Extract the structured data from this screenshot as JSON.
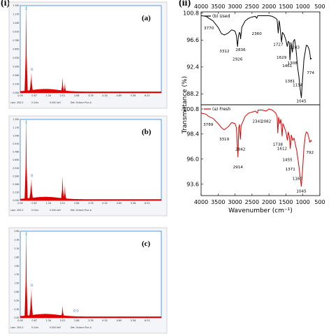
{
  "labels": {
    "left": "(i)",
    "right": "(ii)"
  },
  "colors": {
    "fresh": "#e00000",
    "used": "#000000",
    "eds_fill": "#dd0000",
    "eds_bg": "#f4f5f8",
    "eds_border": "#1a6fd0"
  },
  "chart_data": [
    {
      "type": "area",
      "panel": "(a)",
      "xlim": [
        0,
        6.7
      ],
      "x_ticks": [
        "0.00",
        "0.67",
        "1.34",
        "2.01",
        "2.68",
        "3.35",
        "4.02",
        "4.69",
        "5.36",
        "6.03"
      ],
      "y_ticks": [
        "1.30K",
        "1.17K",
        "1.04K",
        "0.91K",
        "0.78K",
        "0.65K",
        "0.52K",
        "0.39K",
        "0.26K",
        "0.13K",
        "0.00K"
      ],
      "ylim": [
        0,
        1300
      ],
      "footer": [
        "Lsec: 200.0",
        "0 Cnts",
        "0.000 keV",
        "Det: Octane Plus A"
      ],
      "peaks": [
        {
          "label": "C",
          "energy": 0.28,
          "height": 1240
        },
        {
          "label": "O",
          "energy": 0.53,
          "height": 310
        },
        {
          "label": "",
          "energy": 0.5,
          "height": 210
        },
        {
          "label": "",
          "energy": 2.01,
          "height": 230
        },
        {
          "label": "",
          "energy": 2.12,
          "height": 150
        }
      ]
    },
    {
      "type": "area",
      "panel": "(b)",
      "xlim": [
        0,
        6.7
      ],
      "x_ticks": [
        "0.00",
        "0.67",
        "1.34",
        "2.01",
        "2.68",
        "3.35",
        "4.02",
        "4.69",
        "5.36",
        "6.03"
      ],
      "y_ticks": [
        "1.30K",
        "1.17K",
        "1.04K",
        "0.91K",
        "0.78K",
        "0.65K",
        "0.52K",
        "0.39K",
        "0.26K",
        "0.13K",
        "0.00K"
      ],
      "ylim": [
        0,
        1300
      ],
      "footer": [
        "Lsec: 200.0",
        "0 Cnts",
        "0.000 keV",
        "Det: Octane Plus A"
      ],
      "peaks": [
        {
          "label": "C",
          "energy": 0.28,
          "height": 1250
        },
        {
          "label": "O",
          "energy": 0.53,
          "height": 360
        },
        {
          "label": "",
          "energy": 0.5,
          "height": 260
        },
        {
          "label": "",
          "energy": 2.01,
          "height": 390
        },
        {
          "label": "",
          "energy": 2.12,
          "height": 240
        }
      ]
    },
    {
      "type": "area",
      "panel": "(c)",
      "xlim": [
        0,
        6.7
      ],
      "x_ticks": [
        "0.00",
        "0.67",
        "1.34",
        "2.01",
        "2.68",
        "3.35",
        "4.02",
        "4.69",
        "5.36",
        "6.03"
      ],
      "y_ticks": [
        "2.6K",
        "2.3K",
        "2.1K",
        "1.8K",
        "1.6K",
        "1.3K",
        "1.0K",
        "0.8K",
        "0.5K",
        "0.3K",
        "0.0K"
      ],
      "ylim": [
        0,
        2600
      ],
      "footer": [
        "Lsec: 200.0",
        "0 Cnts",
        "0.000 keV",
        "Det: Octane Plus A"
      ],
      "peaks": [
        {
          "label": "C",
          "energy": 0.28,
          "height": 2450
        },
        {
          "label": "O",
          "energy": 0.53,
          "height": 900
        },
        {
          "label": "",
          "energy": 0.5,
          "height": 650
        },
        {
          "label": "",
          "energy": 2.01,
          "height": 360
        },
        {
          "label": "O",
          "energy": 2.55,
          "height": 0
        },
        {
          "label": "O",
          "energy": 2.7,
          "height": 0
        }
      ]
    },
    {
      "type": "line",
      "xlabel": "Wavenumber (cm⁻¹)",
      "ylabel": "Transmittance (%)",
      "x_ticks": [
        4000,
        3500,
        3000,
        2500,
        2000,
        1500,
        1000,
        500
      ],
      "xlim": [
        4000,
        500
      ],
      "reversed_x": true,
      "panels": [
        {
          "legend": "(b) Used",
          "color": "#000000",
          "ylim": [
            86.5,
            101
          ],
          "y_ticks": [
            100.8,
            96.6,
            92.4,
            88.2
          ],
          "points": [
            [
              3990,
              100.4
            ],
            [
              3850,
              100.3
            ],
            [
              3770,
              100.0
            ],
            [
              3650,
              99.6
            ],
            [
              3500,
              98.6
            ],
            [
              3400,
              97.6
            ],
            [
              3312,
              97.4
            ],
            [
              3200,
              97.7
            ],
            [
              3100,
              98.2
            ],
            [
              3000,
              98.0
            ],
            [
              2960,
              97.3
            ],
            [
              2926,
              95.6
            ],
            [
              2900,
              97.2
            ],
            [
              2870,
              97.8
            ],
            [
              2850,
              97.6
            ],
            [
              2836,
              96.8
            ],
            [
              2800,
              98.6
            ],
            [
              2700,
              99.6
            ],
            [
              2600,
              100.0
            ],
            [
              2500,
              100.2
            ],
            [
              2400,
              100.3
            ],
            [
              2360,
              100.0
            ],
            [
              2330,
              100.4
            ],
            [
              2200,
              100.4
            ],
            [
              2100,
              100.4
            ],
            [
              2000,
              100.4
            ],
            [
              1900,
              100.3
            ],
            [
              1800,
              100.0
            ],
            [
              1760,
              99.8
            ],
            [
              1727,
              97.7
            ],
            [
              1700,
              99.6
            ],
            [
              1680,
              99.0
            ],
            [
              1629,
              96.3
            ],
            [
              1600,
              97.8
            ],
            [
              1550,
              97.4
            ],
            [
              1500,
              96.6
            ],
            [
              1461,
              95.6
            ],
            [
              1430,
              96.4
            ],
            [
              1400,
              96.2
            ],
            [
              1381,
              93.5
            ],
            [
              1350,
              96.2
            ],
            [
              1308,
              94.7
            ],
            [
              1280,
              96.4
            ],
            [
              1243,
              96.7
            ],
            [
              1200,
              95.0
            ],
            [
              1154,
              92.3
            ],
            [
              1120,
              91.0
            ],
            [
              1080,
              89.0
            ],
            [
              1045,
              87.6
            ],
            [
              1010,
              90.5
            ],
            [
              970,
              93.5
            ],
            [
              930,
              94.8
            ],
            [
              900,
              95.8
            ],
            [
              860,
              95.7
            ],
            [
              820,
              95.2
            ],
            [
              800,
              94.8
            ],
            [
              774,
              93.6
            ],
            [
              740,
              93.8
            ]
          ],
          "annotations": [
            {
              "text": "3770",
              "x": 3770,
              "y": 98.3
            },
            {
              "text": "3312",
              "x": 3312,
              "y": 94.7
            },
            {
              "text": "2926",
              "x": 2926,
              "y": 93.4
            },
            {
              "text": "2836",
              "x": 2836,
              "y": 94.9
            },
            {
              "text": "2360",
              "x": 2360,
              "y": 97.4
            },
            {
              "text": "1727",
              "x": 1727,
              "y": 95.7
            },
            {
              "text": "1629",
              "x": 1629,
              "y": 93.7
            },
            {
              "text": "1461",
              "x": 1461,
              "y": 92.4
            },
            {
              "text": "1381",
              "x": 1381,
              "y": 90.0
            },
            {
              "text": "1308",
              "x": 1308,
              "y": 92.8
            },
            {
              "text": "1243",
              "x": 1243,
              "y": 95.3
            },
            {
              "text": "1154",
              "x": 1154,
              "y": 89.4
            },
            {
              "text": "1045",
              "x": 1045,
              "y": 86.9
            },
            {
              "text": "774",
              "x": 774,
              "y": 91.3
            }
          ]
        },
        {
          "legend": "(a) Fresh",
          "color": "#e00000",
          "ylim": [
            92.5,
            101.2
          ],
          "y_ticks": [
            100.8,
            98.4,
            96.0,
            93.6
          ],
          "points": [
            [
              3990,
              100.4
            ],
            [
              3850,
              100.3
            ],
            [
              3789,
              100.1
            ],
            [
              3650,
              99.9
            ],
            [
              3500,
              99.4
            ],
            [
              3400,
              99.0
            ],
            [
              3319,
              98.8
            ],
            [
              3200,
              99.1
            ],
            [
              3100,
              99.5
            ],
            [
              3000,
              99.4
            ],
            [
              2960,
              99.0
            ],
            [
              2914,
              96.2
            ],
            [
              2890,
              99.0
            ],
            [
              2870,
              99.3
            ],
            [
              2842,
              97.9
            ],
            [
              2820,
              99.2
            ],
            [
              2700,
              100.1
            ],
            [
              2600,
              100.4
            ],
            [
              2500,
              100.5
            ],
            [
              2400,
              100.6
            ],
            [
              2341,
              100.4
            ],
            [
              2320,
              100.7
            ],
            [
              2200,
              100.7
            ],
            [
              2082,
              100.6
            ],
            [
              2000,
              100.8
            ],
            [
              1900,
              100.7
            ],
            [
              1800,
              100.4
            ],
            [
              1760,
              100.1
            ],
            [
              1738,
              98.5
            ],
            [
              1715,
              100.0
            ],
            [
              1680,
              99.4
            ],
            [
              1650,
              99.8
            ],
            [
              1612,
              98.2
            ],
            [
              1590,
              99.4
            ],
            [
              1550,
              99.1
            ],
            [
              1500,
              98.6
            ],
            [
              1455,
              97.8
            ],
            [
              1430,
              98.6
            ],
            [
              1400,
              98.2
            ],
            [
              1371,
              97.0
            ],
            [
              1340,
              98.3
            ],
            [
              1300,
              97.8
            ],
            [
              1260,
              98.0
            ],
            [
              1220,
              97.4
            ],
            [
              1180,
              96.8
            ],
            [
              1160,
              96.3
            ],
            [
              1120,
              95.4
            ],
            [
              1080,
              94.3
            ],
            [
              1045,
              93.4
            ],
            [
              1010,
              94.9
            ],
            [
              970,
              97.0
            ],
            [
              930,
              98.2
            ],
            [
              900,
              98.6
            ],
            [
              860,
              98.5
            ],
            [
              820,
              98.0
            ],
            [
              792,
              97.6
            ],
            [
              760,
              97.8
            ],
            [
              740,
              97.7
            ]
          ],
          "annotations": [
            {
              "text": "3789",
              "x": 3789,
              "y": 99.2
            },
            {
              "text": "3319",
              "x": 3319,
              "y": 97.8
            },
            {
              "text": "2914",
              "x": 2914,
              "y": 95.1
            },
            {
              "text": "2842",
              "x": 2842,
              "y": 96.8
            },
            {
              "text": "2341",
              "x": 2341,
              "y": 99.5
            },
            {
              "text": "2082",
              "x": 2082,
              "y": 99.5
            },
            {
              "text": "1738",
              "x": 1738,
              "y": 97.3
            },
            {
              "text": "1612",
              "x": 1612,
              "y": 96.9
            },
            {
              "text": "1455",
              "x": 1455,
              "y": 95.8
            },
            {
              "text": "1371",
              "x": 1371,
              "y": 94.9
            },
            {
              "text": "1160",
              "x": 1160,
              "y": 94.0
            },
            {
              "text": "1045",
              "x": 1045,
              "y": 92.8
            },
            {
              "text": "792",
              "x": 792,
              "y": 96.5
            }
          ]
        }
      ]
    }
  ]
}
